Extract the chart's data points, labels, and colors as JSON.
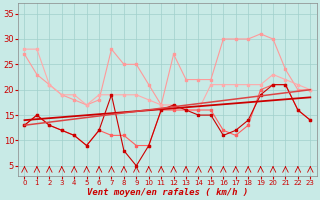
{
  "background_color": "#c8eae6",
  "grid_color": "#a0d0cc",
  "xlabel": "Vent moyen/en rafales ( km/h )",
  "xlim": [
    -0.5,
    23.5
  ],
  "ylim": [
    3,
    37
  ],
  "yticks": [
    5,
    10,
    15,
    20,
    25,
    30,
    35
  ],
  "xticks": [
    0,
    1,
    2,
    3,
    4,
    5,
    6,
    7,
    8,
    9,
    10,
    11,
    12,
    13,
    14,
    15,
    16,
    17,
    18,
    19,
    20,
    21,
    22,
    23
  ],
  "line_light1_color": "#ff9999",
  "line_light2_color": "#ffaaaa",
  "line_med_color": "#ff6060",
  "line_dark1_color": "#cc0000",
  "line_dark2_color": "#cc0000",
  "line_trend1_color": "#cc0000",
  "line_trend2_color": "#dd4444",
  "line_light1_y": [
    27,
    23,
    21,
    19,
    18,
    17,
    18,
    28,
    25,
    25,
    21,
    17,
    27,
    22,
    22,
    22,
    30,
    30,
    30,
    31,
    30,
    24,
    20,
    20
  ],
  "line_light2_y": [
    28,
    28,
    21,
    19,
    19,
    17,
    19,
    19,
    19,
    19,
    18,
    17,
    17,
    16,
    16,
    21,
    21,
    21,
    21,
    21,
    23,
    22,
    21,
    20
  ],
  "line_med_y": [
    13,
    15,
    13,
    12,
    11,
    9,
    12,
    11,
    11,
    9,
    9,
    16,
    16,
    16,
    16,
    16,
    12,
    11,
    13,
    20,
    21,
    21,
    16,
    14
  ],
  "line_dark1_y": [
    13,
    15,
    13,
    12,
    11,
    9,
    12,
    19,
    8,
    5,
    9,
    16,
    17,
    16,
    15,
    15,
    11,
    12,
    14,
    19,
    21,
    21,
    16,
    14
  ],
  "line_trend1_y": [
    14.0,
    18.5
  ],
  "line_trend2_y": [
    13.0,
    20.0
  ]
}
